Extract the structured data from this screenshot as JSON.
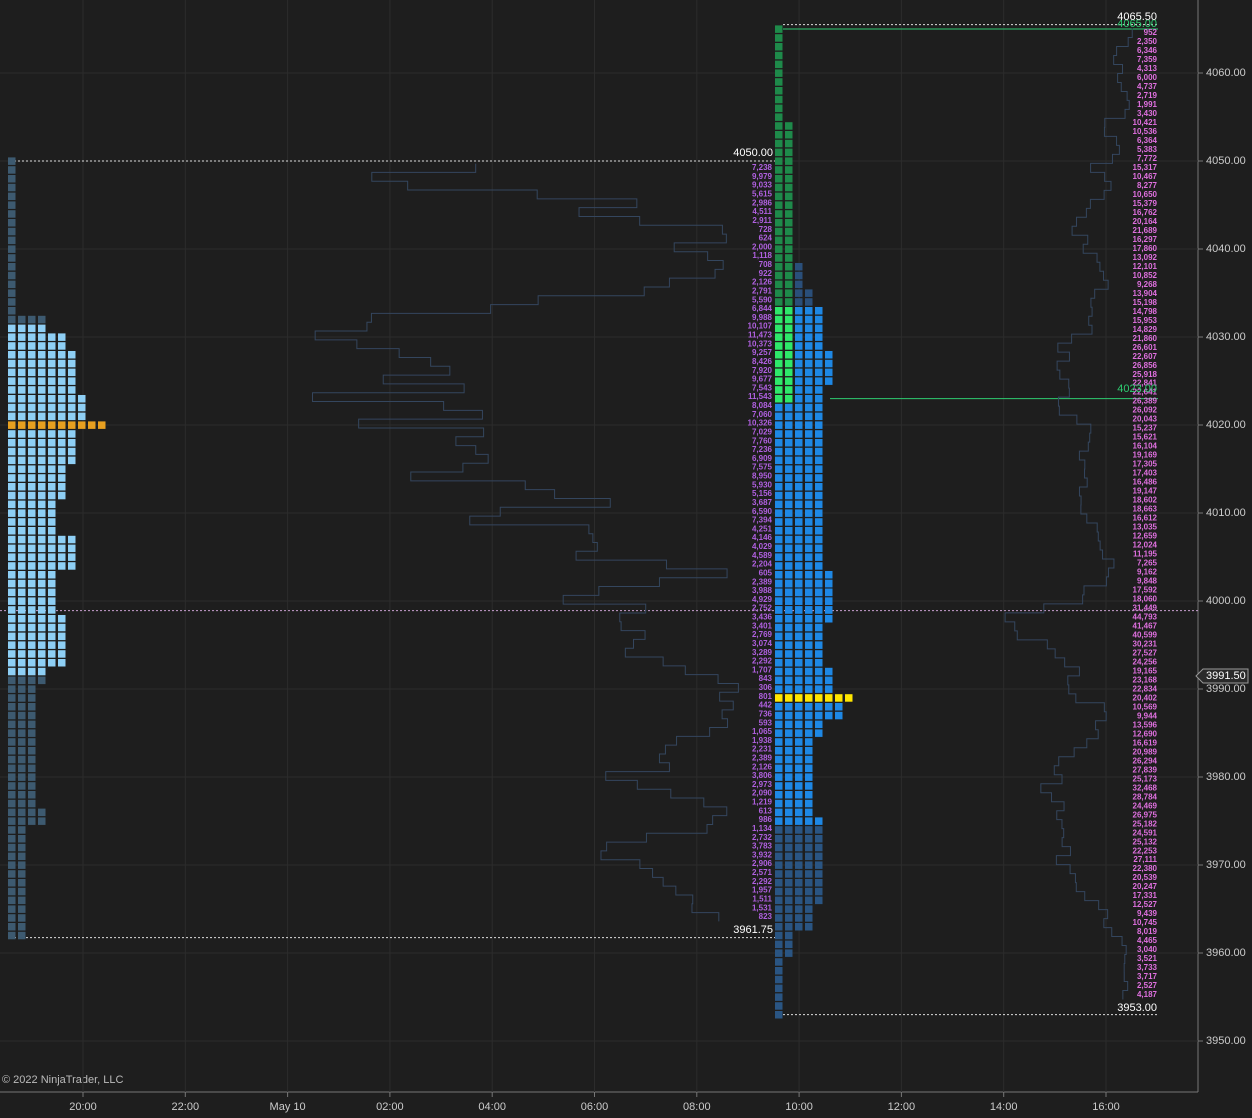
{
  "price_axis": [
    "4060.00",
    "4050.00",
    "4040.00",
    "4030.00",
    "4020.00",
    "4010.00",
    "4000.00",
    "3990.00",
    "3980.00",
    "3970.00",
    "3960.00",
    "3950.00"
  ],
  "time_axis": [
    "20:00",
    "22:00",
    "May 10",
    "02:00",
    "04:00",
    "06:00",
    "08:00",
    "10:00",
    "12:00",
    "14:00",
    "16:00"
  ],
  "current_price": "3991.50",
  "copyright": "© 2022 NinjaTrader, LLC",
  "profile_labels": {
    "prior_high": "4050.00",
    "prior_low": "3961.75",
    "session_high": "4065.50",
    "session_high_alt": "4065.00",
    "session_mid": "4023.00",
    "session_low": "3953.00"
  },
  "volumes_prior": [
    "7,238",
    "9,979",
    "9,033",
    "5,615",
    "2,986",
    "4,511",
    "2,911",
    "728",
    "624",
    "2,000",
    "1,118",
    "708",
    "922",
    "2,126",
    "2,791",
    "5,590",
    "6,844",
    "9,988",
    "10,107",
    "11,473",
    "10,373",
    "9,257",
    "8,426",
    "7,920",
    "9,677",
    "7,543",
    "11,543",
    "8,084",
    "7,060",
    "10,326",
    "7,029",
    "7,760",
    "7,236",
    "6,909",
    "7,575",
    "8,950",
    "5,930",
    "5,156",
    "3,687",
    "6,590",
    "7,394",
    "4,251",
    "4,146",
    "4,029",
    "4,589",
    "2,204",
    "605",
    "2,389",
    "3,988",
    "4,929",
    "2,752",
    "3,436",
    "3,401",
    "2,769",
    "3,074",
    "3,289",
    "2,292",
    "1,707",
    "843",
    "306",
    "801",
    "442",
    "736",
    "593",
    "1,065",
    "1,938",
    "2,231",
    "2,389",
    "2,126",
    "3,806",
    "2,973",
    "2,090",
    "1,219",
    "613",
    "986",
    "1,134",
    "2,732",
    "3,783",
    "3,932",
    "2,906",
    "2,571",
    "2,292",
    "1,957",
    "1,511",
    "1,531",
    "823"
  ],
  "volumes_session": [
    "952",
    "2,350",
    "6,346",
    "7,359",
    "4,313",
    "6,000",
    "4,737",
    "2,719",
    "1,991",
    "3,430",
    "10,421",
    "10,536",
    "6,364",
    "5,383",
    "7,772",
    "15,317",
    "10,467",
    "8,277",
    "10,650",
    "15,379",
    "16,762",
    "20,164",
    "21,689",
    "16,297",
    "17,860",
    "13,092",
    "12,101",
    "10,852",
    "9,268",
    "13,904",
    "15,198",
    "14,798",
    "15,953",
    "14,829",
    "21,860",
    "26,601",
    "22,607",
    "26,856",
    "25,918",
    "22,841",
    "22,641",
    "26,389",
    "26,092",
    "20,043",
    "15,237",
    "15,621",
    "16,104",
    "19,169",
    "17,305",
    "17,403",
    "16,486",
    "19,147",
    "18,602",
    "18,663",
    "16,612",
    "13,035",
    "12,659",
    "12,024",
    "11,195",
    "7,265",
    "9,162",
    "9,848",
    "17,592",
    "18,060",
    "31,449",
    "44,793",
    "41,467",
    "40,599",
    "30,231",
    "27,527",
    "24,256",
    "19,165",
    "23,168",
    "22,834",
    "20,402",
    "10,569",
    "9,944",
    "13,596",
    "12,690",
    "16,619",
    "20,989",
    "26,294",
    "27,839",
    "25,173",
    "32,468",
    "28,784",
    "24,469",
    "26,975",
    "25,182",
    "24,591",
    "25,132",
    "22,253",
    "27,111",
    "22,380",
    "20,539",
    "20,247",
    "17,331",
    "12,527",
    "9,439",
    "10,745",
    "8,019",
    "4,465",
    "3,040",
    "3,521",
    "3,733",
    "3,717",
    "2,527",
    "4,187"
  ]
}
